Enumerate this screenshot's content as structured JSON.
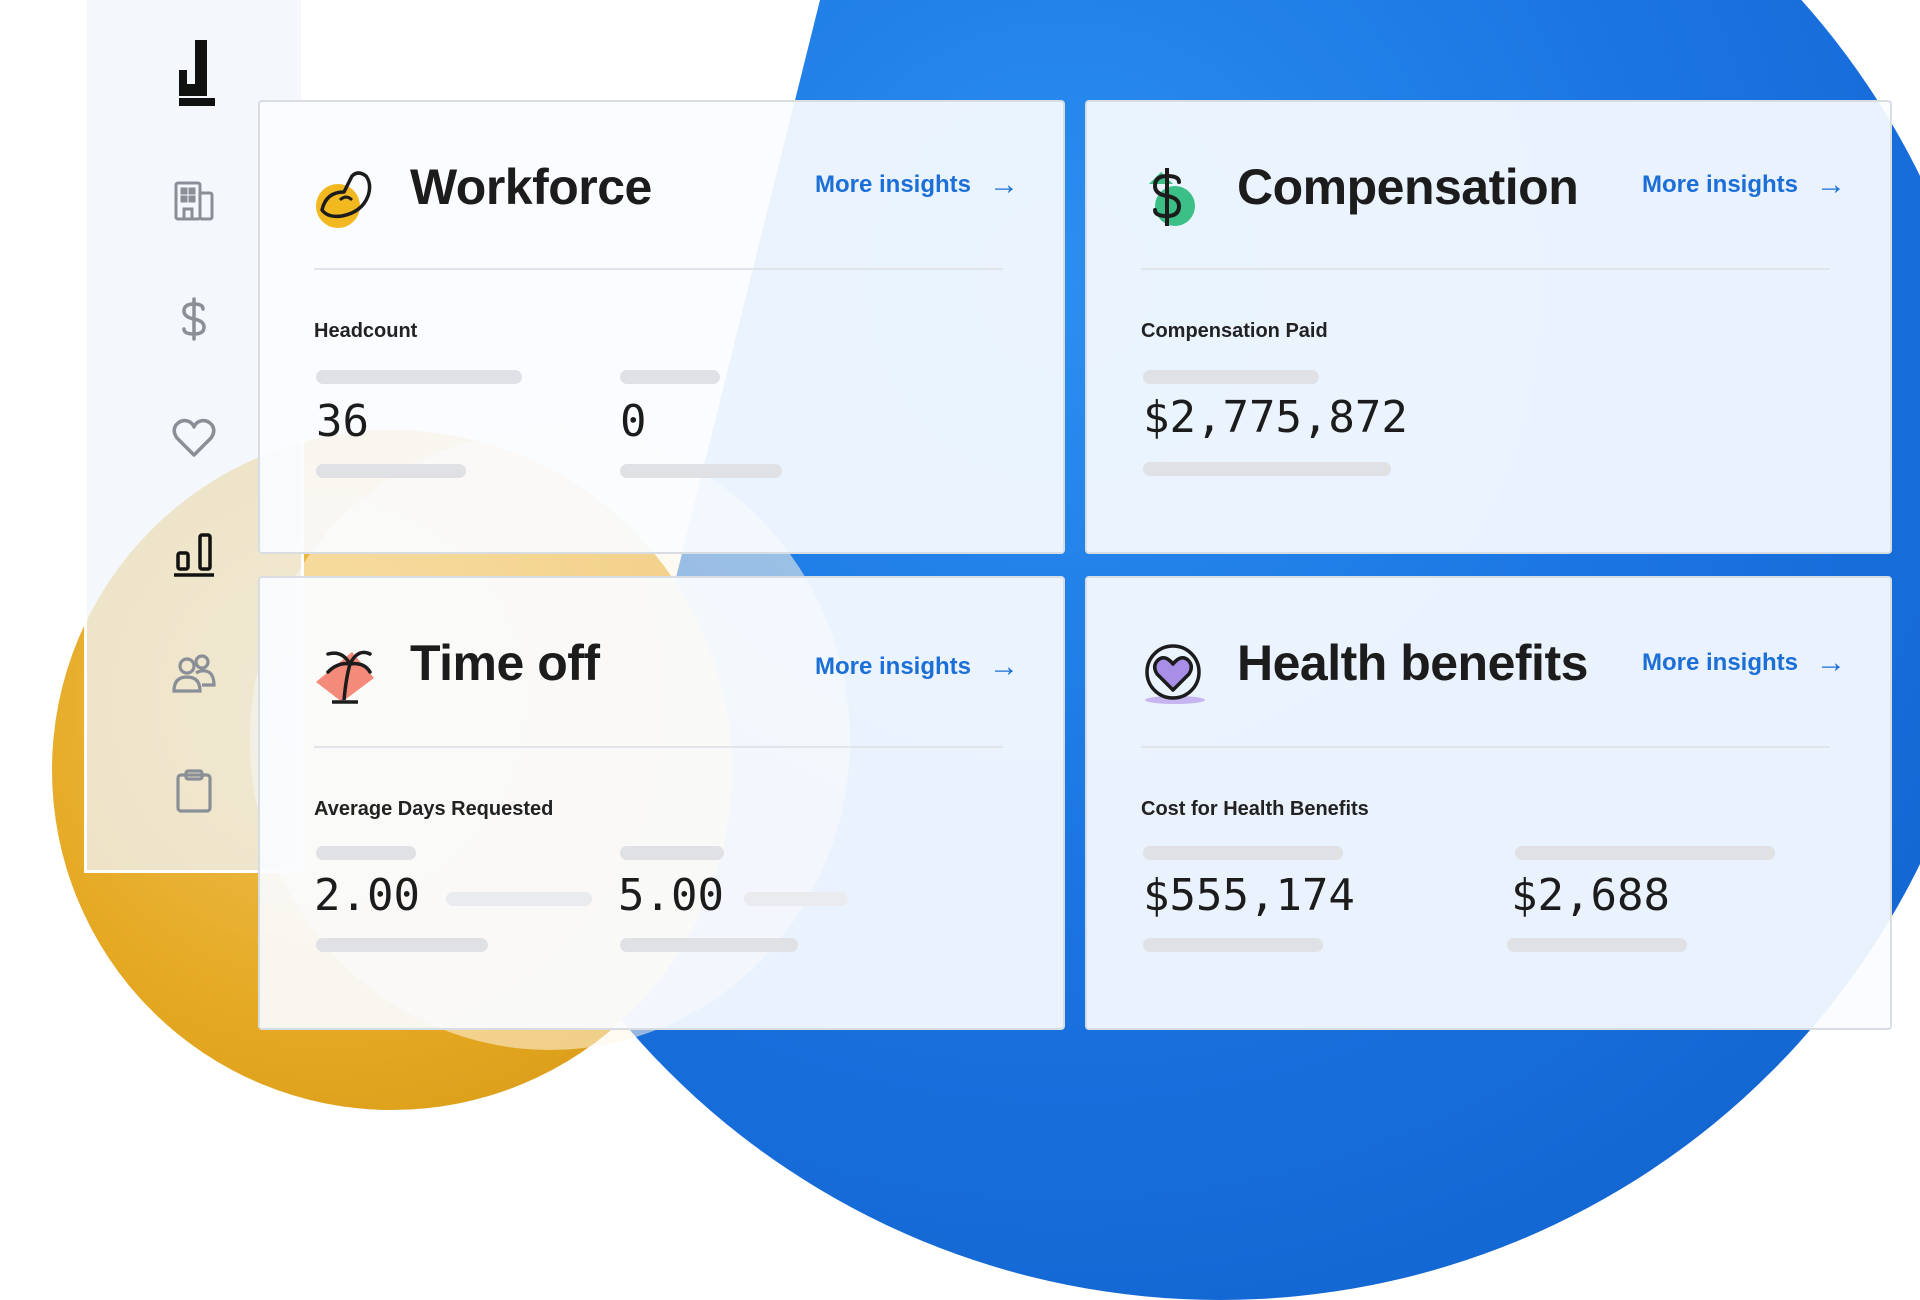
{
  "sidebar": {
    "logo": "J",
    "icons": [
      "building-icon",
      "dollar-icon",
      "heart-icon",
      "bar-chart-icon",
      "people-icon",
      "clipboard-icon"
    ],
    "active_icon": "bar-chart-icon"
  },
  "cards": {
    "workforce": {
      "title": "Workforce",
      "link": "More insights",
      "metric_label": "Headcount",
      "values": [
        "36",
        "0"
      ]
    },
    "compensation": {
      "title": "Compensation",
      "link": "More insights",
      "metric_label": "Compensation Paid",
      "values": [
        "$2,775,872"
      ]
    },
    "timeoff": {
      "title": "Time off",
      "link": "More insights",
      "metric_label": "Average Days Requested",
      "values": [
        "2.00",
        "5.00"
      ]
    },
    "health": {
      "title": "Health benefits",
      "link": "More insights",
      "metric_label": "Cost for Health Benefits",
      "values": [
        "$555,174",
        "$2,688"
      ]
    }
  },
  "colors": {
    "link": "#1c6fd6",
    "blue_shape": "#1a74e2",
    "gold_shape": "#e5a923"
  }
}
